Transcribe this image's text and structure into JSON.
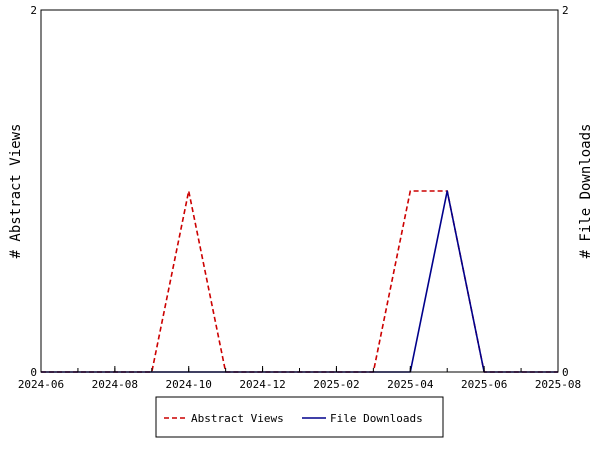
{
  "chart_data": {
    "type": "line",
    "x": [
      "2024-06",
      "2024-07",
      "2024-08",
      "2024-09",
      "2024-10",
      "2024-11",
      "2024-12",
      "2025-01",
      "2025-02",
      "2025-03",
      "2025-04",
      "2025-05",
      "2025-06",
      "2025-07",
      "2025-08"
    ],
    "x_tick_labels": [
      "2024-06",
      "2024-08",
      "2024-10",
      "2024-12",
      "2025-02",
      "2025-04",
      "2025-06",
      "2025-08"
    ],
    "xlim": [
      "2024-06",
      "2025-08"
    ],
    "ylabel_left": "# Abstract Views",
    "ylabel_right": "# File Downloads",
    "y_tick_labels_left": [
      "0",
      "2"
    ],
    "y_tick_labels_right": [
      "0",
      "2"
    ],
    "ylim_left": [
      0,
      2
    ],
    "ylim_right": [
      0,
      2
    ],
    "grid": false,
    "legend_position": "bottom-center",
    "series": [
      {
        "name": "Abstract Views",
        "axis": "left",
        "color": "#cc0000",
        "line_style": "dashed",
        "values": [
          0,
          0,
          0,
          0,
          1,
          0,
          0,
          0,
          0,
          0,
          1,
          1,
          0,
          0,
          0
        ]
      },
      {
        "name": "File Downloads",
        "axis": "right",
        "color": "#00008b",
        "line_style": "solid",
        "values": [
          0,
          0,
          0,
          0,
          0,
          0,
          0,
          0,
          0,
          0,
          0,
          1,
          0,
          0,
          0
        ]
      }
    ]
  }
}
